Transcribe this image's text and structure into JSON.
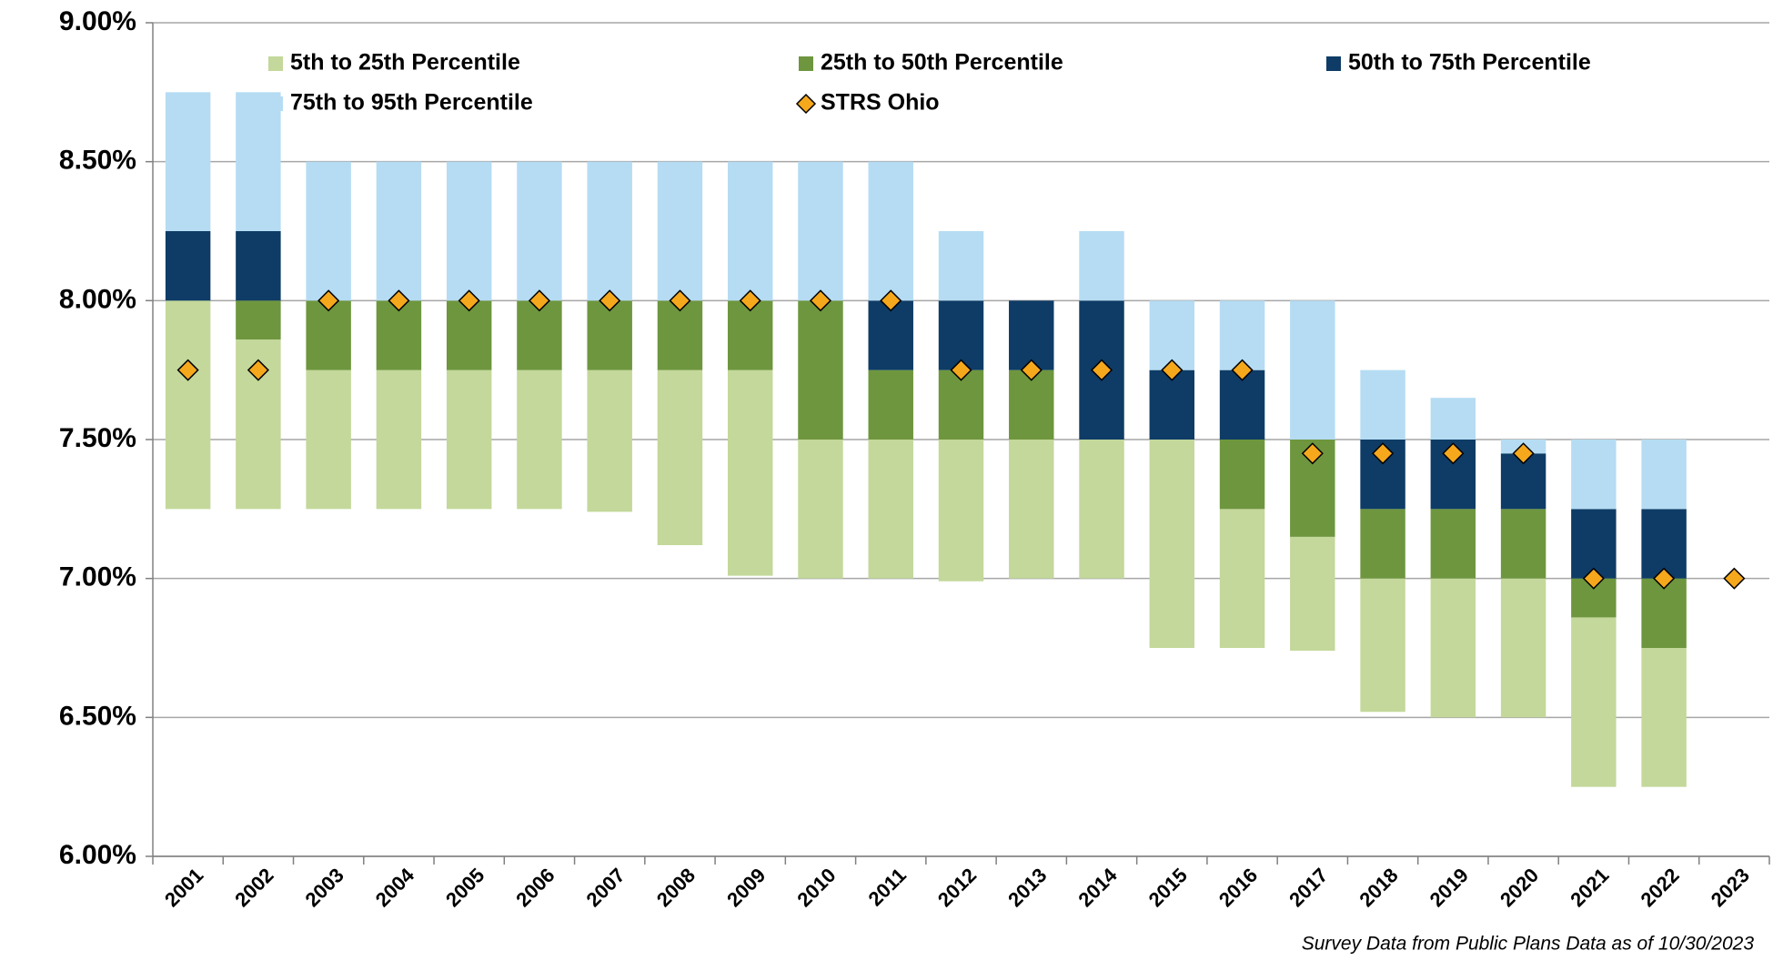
{
  "chart_data": {
    "type": "floating-bar",
    "categories": [
      "2001",
      "2002",
      "2003",
      "2004",
      "2005",
      "2006",
      "2007",
      "2008",
      "2009",
      "2010",
      "2011",
      "2012",
      "2013",
      "2014",
      "2015",
      "2016",
      "2017",
      "2018",
      "2019",
      "2020",
      "2021",
      "2022",
      "2023"
    ],
    "series": [
      {
        "name": "5th to 25th Percentile",
        "color": "#c3d89a",
        "values": [
          [
            7.25,
            8.0
          ],
          [
            7.25,
            7.86
          ],
          [
            7.25,
            7.75
          ],
          [
            7.25,
            7.75
          ],
          [
            7.25,
            7.75
          ],
          [
            7.25,
            7.75
          ],
          [
            7.24,
            7.75
          ],
          [
            7.12,
            7.75
          ],
          [
            7.01,
            7.75
          ],
          [
            7.0,
            7.5
          ],
          [
            7.0,
            7.5
          ],
          [
            6.99,
            7.5
          ],
          [
            7.0,
            7.5
          ],
          [
            7.0,
            7.5
          ],
          [
            6.75,
            7.5
          ],
          [
            6.75,
            7.25
          ],
          [
            6.74,
            7.15
          ],
          [
            6.52,
            7.0
          ],
          [
            6.5,
            7.0
          ],
          [
            6.5,
            7.0
          ],
          [
            6.25,
            6.86
          ],
          [
            6.25,
            6.75
          ],
          null
        ]
      },
      {
        "name": "25th to 50th Percentile",
        "color": "#6e963e",
        "values": [
          [
            8.0,
            8.0
          ],
          [
            7.86,
            8.0
          ],
          [
            7.75,
            8.0
          ],
          [
            7.75,
            8.0
          ],
          [
            7.75,
            8.0
          ],
          [
            7.75,
            8.0
          ],
          [
            7.75,
            8.0
          ],
          [
            7.75,
            8.0
          ],
          [
            7.75,
            8.0
          ],
          [
            7.5,
            8.0
          ],
          [
            7.5,
            7.75
          ],
          [
            7.5,
            7.75
          ],
          [
            7.5,
            7.75
          ],
          [
            7.5,
            7.5
          ],
          [
            7.5,
            7.5
          ],
          [
            7.25,
            7.5
          ],
          [
            7.15,
            7.5
          ],
          [
            7.0,
            7.25
          ],
          [
            7.0,
            7.25
          ],
          [
            7.0,
            7.25
          ],
          [
            6.86,
            7.0
          ],
          [
            6.75,
            7.0
          ],
          null
        ]
      },
      {
        "name": "50th to 75th Percentile",
        "color": "#0e3c66",
        "values": [
          [
            8.0,
            8.25
          ],
          [
            8.0,
            8.25
          ],
          [
            8.0,
            8.0
          ],
          [
            8.0,
            8.0
          ],
          [
            8.0,
            8.0
          ],
          [
            8.0,
            8.0
          ],
          [
            8.0,
            8.0
          ],
          [
            8.0,
            8.0
          ],
          [
            8.0,
            8.0
          ],
          [
            8.0,
            8.0
          ],
          [
            7.75,
            8.0
          ],
          [
            7.75,
            8.0
          ],
          [
            7.75,
            8.0
          ],
          [
            7.5,
            8.0
          ],
          [
            7.5,
            7.75
          ],
          [
            7.5,
            7.75
          ],
          [
            7.5,
            7.5
          ],
          [
            7.25,
            7.5
          ],
          [
            7.25,
            7.5
          ],
          [
            7.25,
            7.45
          ],
          [
            7.0,
            7.25
          ],
          [
            7.0,
            7.25
          ],
          null
        ]
      },
      {
        "name": "75th to 95th Percentile",
        "color": "#b5dcf3",
        "values": [
          [
            8.25,
            8.75
          ],
          [
            8.25,
            8.75
          ],
          [
            8.0,
            8.5
          ],
          [
            8.0,
            8.5
          ],
          [
            8.0,
            8.5
          ],
          [
            8.0,
            8.5
          ],
          [
            8.0,
            8.5
          ],
          [
            8.0,
            8.5
          ],
          [
            8.0,
            8.5
          ],
          [
            8.0,
            8.5
          ],
          [
            8.0,
            8.5
          ],
          [
            8.0,
            8.25
          ],
          [
            8.0,
            8.0
          ],
          [
            8.0,
            8.25
          ],
          [
            7.75,
            8.0
          ],
          [
            7.75,
            8.0
          ],
          [
            7.5,
            8.0
          ],
          [
            7.5,
            7.75
          ],
          [
            7.5,
            7.65
          ],
          [
            7.45,
            7.5
          ],
          [
            7.25,
            7.5
          ],
          [
            7.25,
            7.5
          ],
          null
        ]
      },
      {
        "name": "STRS Ohio",
        "color": "#f5a81c",
        "values": [
          7.75,
          7.75,
          8.0,
          8.0,
          8.0,
          8.0,
          8.0,
          8.0,
          8.0,
          8.0,
          8.0,
          7.75,
          7.75,
          7.75,
          7.75,
          7.75,
          7.45,
          7.45,
          7.45,
          7.45,
          7.0,
          7.0,
          7.0
        ]
      }
    ],
    "ylim": [
      6.0,
      9.0
    ],
    "yticks": [
      {
        "value": 6.0,
        "label": "6.00%"
      },
      {
        "value": 6.5,
        "label": "6.50%"
      },
      {
        "value": 7.0,
        "label": "7.00%"
      },
      {
        "value": 7.5,
        "label": "7.50%"
      },
      {
        "value": 8.0,
        "label": "8.00%"
      },
      {
        "value": 8.5,
        "label": "8.50%"
      },
      {
        "value": 9.0,
        "label": "9.00%"
      }
    ],
    "grid": true,
    "note": "Survey Data from Public Plans Data as of 10/30/2023"
  }
}
